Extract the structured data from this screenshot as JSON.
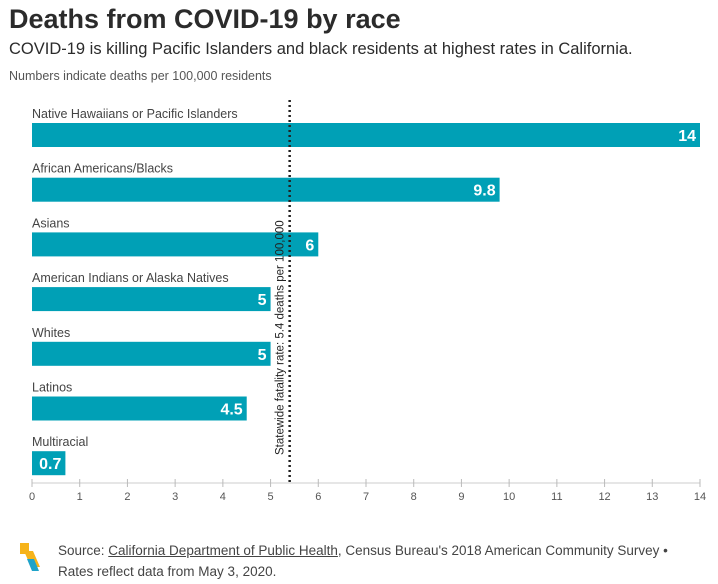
{
  "title": "Deaths from COVID-19 by race",
  "subtitle": "COVID-19 is killing Pacific Islanders and black residents at highest rates in California.",
  "note": "Numbers indicate deaths per 100,000 residents",
  "chart_data": {
    "type": "bar",
    "orientation": "horizontal",
    "categories": [
      "Native Hawaiians or Pacific Islanders",
      "African Americans/Blacks",
      "Asians",
      "American Indians or Alaska Natives",
      "Whites",
      "Latinos",
      "Multiracial"
    ],
    "values": [
      14,
      9.8,
      6,
      5,
      5,
      4.5,
      0.7
    ],
    "value_labels": [
      "14",
      "9.8",
      "6",
      "5",
      "5",
      "4.5",
      "0.7"
    ],
    "xlim": [
      0,
      14
    ],
    "xticks": [
      0,
      1,
      2,
      3,
      4,
      5,
      6,
      7,
      8,
      9,
      10,
      11,
      12,
      13,
      14
    ],
    "grid": false,
    "bar_color": "#00a0b6",
    "reference_line": {
      "value": 5.4,
      "label": "Statewide fatality rate: 5.4 deaths per 100,000",
      "style": "dotted",
      "color": "#222222"
    }
  },
  "footer": {
    "source_prefix": "Source: ",
    "source_link": "California Department of Public Health",
    "source_rest": ", Census Bureau's 2018 American Community Survey •",
    "line2": "Rates reflect data from May 3, 2020."
  },
  "logo_icon": "calmatters-logo-icon"
}
